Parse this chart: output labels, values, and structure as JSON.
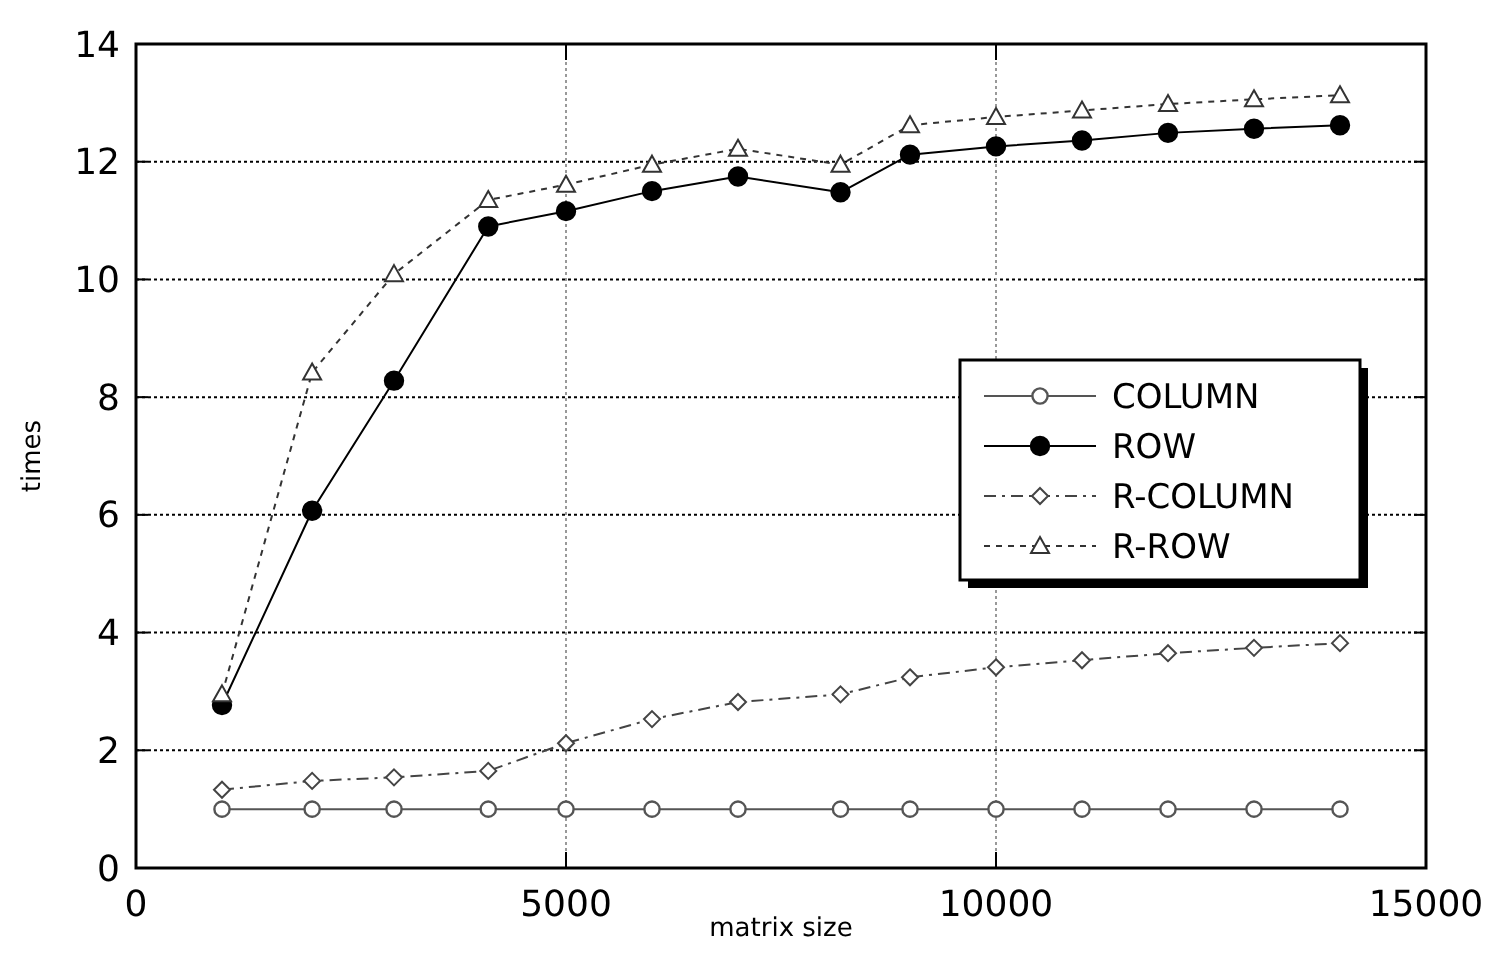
{
  "chart_data": {
    "type": "line",
    "xlabel": "matrix size",
    "ylabel": "times",
    "xlim": [
      0,
      15000
    ],
    "xticks": [
      0,
      5000,
      10000,
      15000
    ],
    "ylim": [
      0,
      14
    ],
    "yticks": [
      0,
      2,
      4,
      6,
      8,
      10,
      12,
      14
    ],
    "grid": true,
    "legend": "right",
    "x": [
      1000,
      2048,
      3000,
      4096,
      5000,
      6000,
      7000,
      8192,
      9000,
      10000,
      11000,
      12000,
      13000,
      14000
    ],
    "series": [
      {
        "name": "COLUMN",
        "color": "#555555",
        "marker": "circle",
        "line_style": "solid",
        "values": [
          1,
          1,
          1,
          1,
          1,
          1,
          1,
          1,
          1,
          1,
          1,
          1,
          1,
          1
        ]
      },
      {
        "name": "ROW",
        "color": "#000000",
        "marker": "circle",
        "line_style": "solid",
        "values": [
          2.77,
          6.07,
          8.28,
          10.9,
          11.16,
          11.5,
          11.75,
          11.48,
          12.12,
          12.26,
          12.36,
          12.49,
          12.56,
          12.62
        ]
      },
      {
        "name": "R-COLUMN",
        "color": "#444444",
        "marker": "diamond",
        "line_style": "dashed",
        "values": [
          1.33,
          1.48,
          1.54,
          1.65,
          2.12,
          2.53,
          2.82,
          2.95,
          3.24,
          3.41,
          3.53,
          3.65,
          3.74,
          3.82
        ]
      },
      {
        "name": "R-ROW",
        "color": "#333333",
        "marker": "triangle",
        "line_style": "dotted",
        "values": [
          2.95,
          8.42,
          10.09,
          11.35,
          11.61,
          11.95,
          12.22,
          11.95,
          12.62,
          12.76,
          12.87,
          12.98,
          13.06,
          13.13
        ]
      }
    ]
  }
}
